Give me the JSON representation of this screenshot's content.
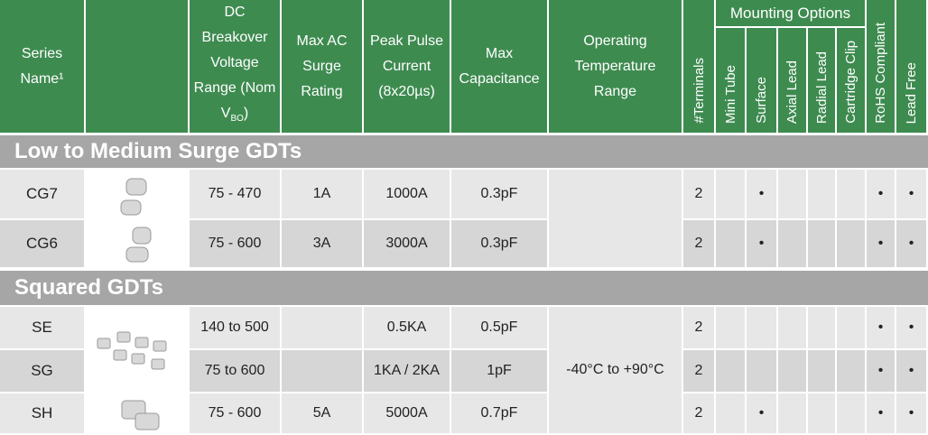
{
  "table": {
    "headers": {
      "series_name": "Series Name¹",
      "dc_voltage": {
        "text": "DC Breakover Voltage Range (Nom V",
        "subscript": "BO",
        "close": ")"
      },
      "max_ac": "Max AC Surge Rating",
      "peak_pulse": "Peak Pulse Current (8x20µs)",
      "capacitance": "Max Capacitance",
      "temperature": "Operating Temperature Range",
      "terminals": "#Terminals",
      "mounting_options": "Mounting Options",
      "mini_tube": "Mini Tube",
      "surface": "Surface",
      "axial_lead": "Axial Lead",
      "radial_lead": "Radial Lead",
      "cartridge_clip": "Cartridge Clip",
      "rohs": "RoHS Compliant",
      "lead_free": "Lead Free"
    },
    "operating_temperature": "-40°C to +90°C",
    "sections": [
      {
        "title": "Low to Medium Surge GDTs",
        "rows": [
          {
            "series": "CG7",
            "dc_voltage": "75 - 470",
            "max_ac": "1A",
            "peak_pulse": "1000A",
            "capacitance": "0.3pF",
            "terminals": "2",
            "surface": "•",
            "rohs": "•",
            "lead_free": "•"
          },
          {
            "series": "CG6",
            "dc_voltage": "75 - 600",
            "max_ac": "3A",
            "peak_pulse": "3000A",
            "capacitance": "0.3pF",
            "terminals": "2",
            "surface": "•",
            "rohs": "•",
            "lead_free": "•"
          }
        ]
      },
      {
        "title": "Squared GDTs",
        "rows": [
          {
            "series": "SE",
            "dc_voltage": "140 to 500",
            "peak_pulse": "0.5KA",
            "capacitance": "0.5pF",
            "terminals": "2",
            "rohs": "•",
            "lead_free": "•"
          },
          {
            "series": "SG",
            "dc_voltage": "75 to 600",
            "peak_pulse": "1KA / 2KA",
            "capacitance": "1pF",
            "terminals": "2",
            "rohs": "•",
            "lead_free": "•"
          },
          {
            "series": "SH",
            "dc_voltage": "75 - 600",
            "max_ac": "5A",
            "peak_pulse": "5000A",
            "capacitance": "0.7pF",
            "terminals": "2",
            "surface": "•",
            "rohs": "•",
            "lead_free": "•"
          }
        ]
      }
    ]
  }
}
